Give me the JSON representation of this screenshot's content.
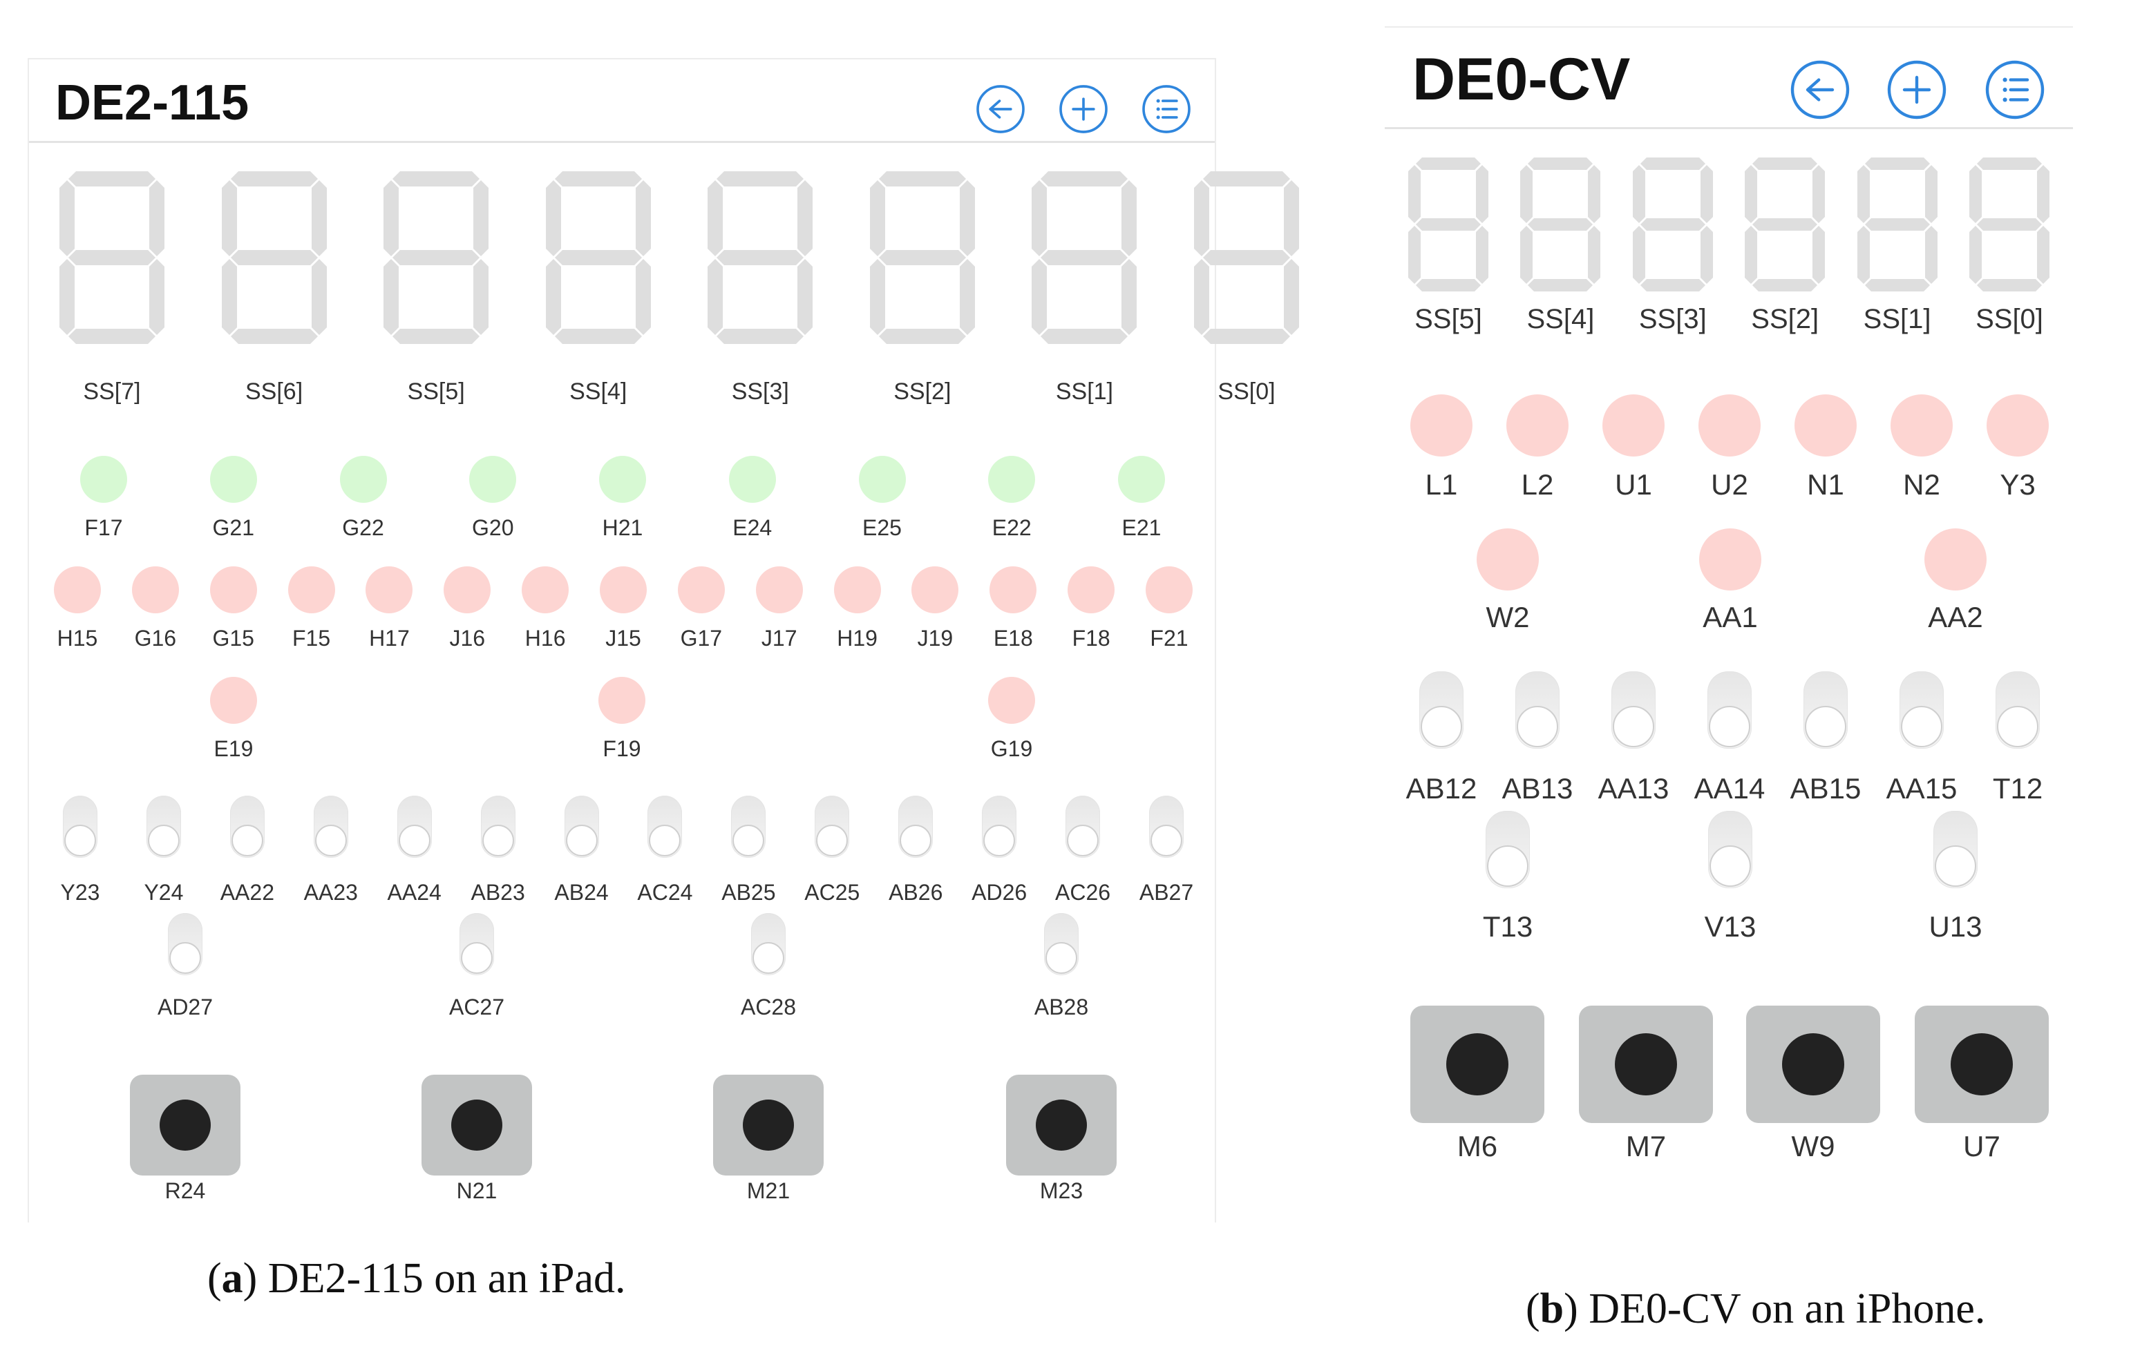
{
  "panel_a": {
    "title": "DE2-115",
    "header_icons": [
      "back-icon",
      "add-icon",
      "list-icon"
    ],
    "seven_segment_labels": [
      "SS[7]",
      "SS[6]",
      "SS[5]",
      "SS[4]",
      "SS[3]",
      "SS[2]",
      "SS[1]",
      "SS[0]"
    ],
    "green_leds": [
      "F17",
      "G21",
      "G22",
      "G20",
      "H21",
      "E24",
      "E25",
      "E22",
      "E21"
    ],
    "red_leds_row1": [
      "H15",
      "G16",
      "G15",
      "F15",
      "H17",
      "J16",
      "H16",
      "J15",
      "G17",
      "J17",
      "H19",
      "J19",
      "E18",
      "F18",
      "F21"
    ],
    "red_leds_row2": [
      "E19",
      "F19",
      "G19"
    ],
    "switches_row1": [
      "Y23",
      "Y24",
      "AA22",
      "AA23",
      "AA24",
      "AB23",
      "AB24",
      "AC24",
      "AB25",
      "AC25",
      "AB26",
      "AD26",
      "AC26",
      "AB27"
    ],
    "switches_row2": [
      "AD27",
      "AC27",
      "AC28",
      "AB28"
    ],
    "buttons": [
      "R24",
      "N21",
      "M21",
      "M23"
    ]
  },
  "panel_b": {
    "title": "DE0-CV",
    "header_icons": [
      "back-icon",
      "add-icon",
      "list-icon"
    ],
    "seven_segment_labels": [
      "SS[5]",
      "SS[4]",
      "SS[3]",
      "SS[2]",
      "SS[1]",
      "SS[0]"
    ],
    "red_leds_row1": [
      "L1",
      "L2",
      "U1",
      "U2",
      "N1",
      "N2",
      "Y3"
    ],
    "red_leds_row2": [
      "W2",
      "AA1",
      "AA2"
    ],
    "switches_row1": [
      "AB12",
      "AB13",
      "AA13",
      "AA14",
      "AB15",
      "AA15",
      "T12"
    ],
    "switches_row2": [
      "T13",
      "V13",
      "U13"
    ],
    "buttons": [
      "M6",
      "M7",
      "W9",
      "U7"
    ]
  },
  "captions": {
    "a_prefix": "(",
    "a_letter": "a",
    "a_text": ") DE2-115 on an iPad.",
    "b_prefix": "(",
    "b_letter": "b",
    "b_text": ") DE0-CV on an iPhone."
  },
  "colors": {
    "led_green": "#d7f9d3",
    "led_red": "#fdd5d2",
    "segment_off": "#dedede",
    "icon_blue": "#2f86dd",
    "button_body": "#c2c4c4",
    "button_dot": "#222222"
  }
}
